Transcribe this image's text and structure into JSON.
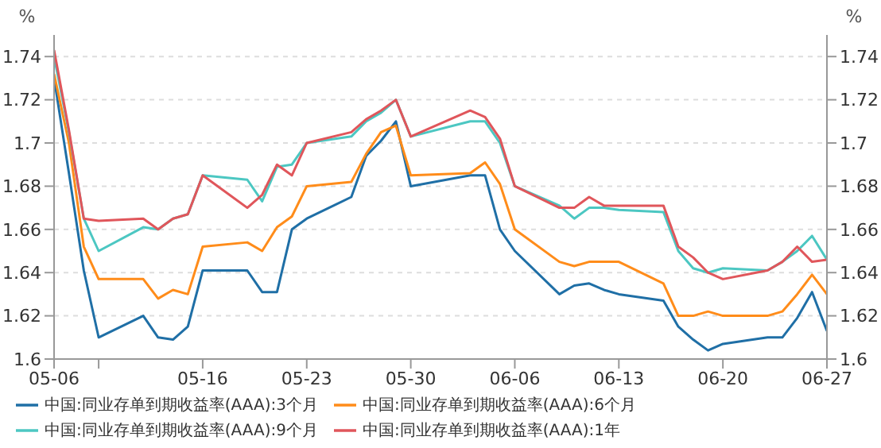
{
  "chart_data": {
    "type": "line",
    "ylabel": "%",
    "y2label": "%",
    "x": [
      "--05-06",
      "--05-07",
      "--05-08",
      "--05-09",
      "--05-12",
      "--05-13",
      "--05-14",
      "--05-15",
      "--05-16",
      "--05-19",
      "--05-20",
      "--05-21",
      "--05-22",
      "--05-23",
      "--05-26",
      "--05-27",
      "--05-28",
      "--05-29",
      "--05-30",
      "--06-03",
      "--06-04",
      "--06-05",
      "--06-06",
      "--06-09",
      "--06-10",
      "--06-11",
      "--06-12",
      "--06-13",
      "--06-16",
      "--06-17",
      "--06-18",
      "--06-19",
      "--06-20",
      "--06-23",
      "--06-24",
      "--06-25",
      "--06-26",
      "--06-27"
    ],
    "series": [
      {
        "name": "中国:同业存单到期收益率(AAA):3个月",
        "color": "#1f6fa6",
        "values": [
          1.73,
          1.686,
          1.641,
          1.61,
          1.62,
          1.61,
          1.609,
          1.615,
          1.641,
          1.641,
          1.631,
          1.631,
          1.66,
          1.665,
          1.675,
          1.694,
          1.701,
          1.71,
          1.68,
          1.685,
          1.685,
          1.66,
          1.65,
          1.63,
          1.634,
          1.635,
          1.632,
          1.63,
          1.627,
          1.615,
          1.609,
          1.604,
          1.607,
          1.61,
          1.61,
          1.619,
          1.631,
          1.613
        ]
      },
      {
        "name": "中国:同业存单到期收益率(AAA):6个月",
        "color": "#ff8c1a",
        "values": [
          1.732,
          1.7,
          1.652,
          1.637,
          1.637,
          1.628,
          1.632,
          1.63,
          1.652,
          1.654,
          1.65,
          1.661,
          1.666,
          1.68,
          1.682,
          1.695,
          1.705,
          1.708,
          1.685,
          1.686,
          1.691,
          1.681,
          1.66,
          1.645,
          1.643,
          1.645,
          1.645,
          1.645,
          1.635,
          1.62,
          1.62,
          1.622,
          1.62,
          1.62,
          1.622,
          1.63,
          1.639,
          1.63
        ]
      },
      {
        "name": "中国:同业存单到期收益率(AAA):9个月",
        "color": "#4cc7c2",
        "values": [
          1.74,
          1.705,
          1.665,
          1.65,
          1.661,
          1.66,
          1.665,
          1.667,
          1.685,
          1.683,
          1.673,
          1.689,
          1.69,
          1.7,
          1.703,
          1.71,
          1.714,
          1.72,
          1.703,
          1.71,
          1.71,
          1.7,
          1.68,
          1.671,
          1.665,
          1.67,
          1.67,
          1.669,
          1.668,
          1.65,
          1.642,
          1.64,
          1.642,
          1.641,
          1.645,
          1.65,
          1.657,
          1.646
        ]
      },
      {
        "name": "中国:同业存单到期收益率(AAA):1年",
        "color": "#e0565b",
        "values": [
          1.743,
          1.706,
          1.665,
          1.664,
          1.665,
          1.66,
          1.665,
          1.667,
          1.685,
          1.67,
          1.676,
          1.69,
          1.685,
          1.7,
          1.705,
          1.711,
          1.715,
          1.72,
          1.703,
          1.715,
          1.712,
          1.702,
          1.68,
          1.67,
          1.67,
          1.675,
          1.671,
          1.671,
          1.671,
          1.652,
          1.647,
          1.64,
          1.637,
          1.641,
          1.645,
          1.652,
          1.645,
          1.646
        ]
      }
    ],
    "xlim": [
      "--05-06",
      "--06-27"
    ],
    "xticks": [
      {
        "value": "--05-06",
        "label": "05-06"
      },
      {
        "value": "--05-09",
        "label": null
      },
      {
        "value": "--05-16",
        "label": "05-16"
      },
      {
        "value": "--05-23",
        "label": "05-23"
      },
      {
        "value": "--05-30",
        "label": "05-30"
      },
      {
        "value": "--06-06",
        "label": "06-06"
      },
      {
        "value": "--06-13",
        "label": "06-13"
      },
      {
        "value": "--06-20",
        "label": "06-20"
      },
      {
        "value": "--06-27",
        "label": "06-27"
      }
    ],
    "ylim": [
      1.6,
      1.75
    ],
    "yticks": [
      1.6,
      1.62,
      1.64,
      1.66,
      1.68,
      1.7,
      1.72,
      1.74
    ],
    "y2lim": [
      1.6,
      1.75
    ],
    "y2ticks": [
      1.6,
      1.62,
      1.64,
      1.66,
      1.68,
      1.7,
      1.72,
      1.74
    ],
    "grid": "y",
    "legend": "bottom",
    "marker": "none",
    "line_style": "solid"
  }
}
